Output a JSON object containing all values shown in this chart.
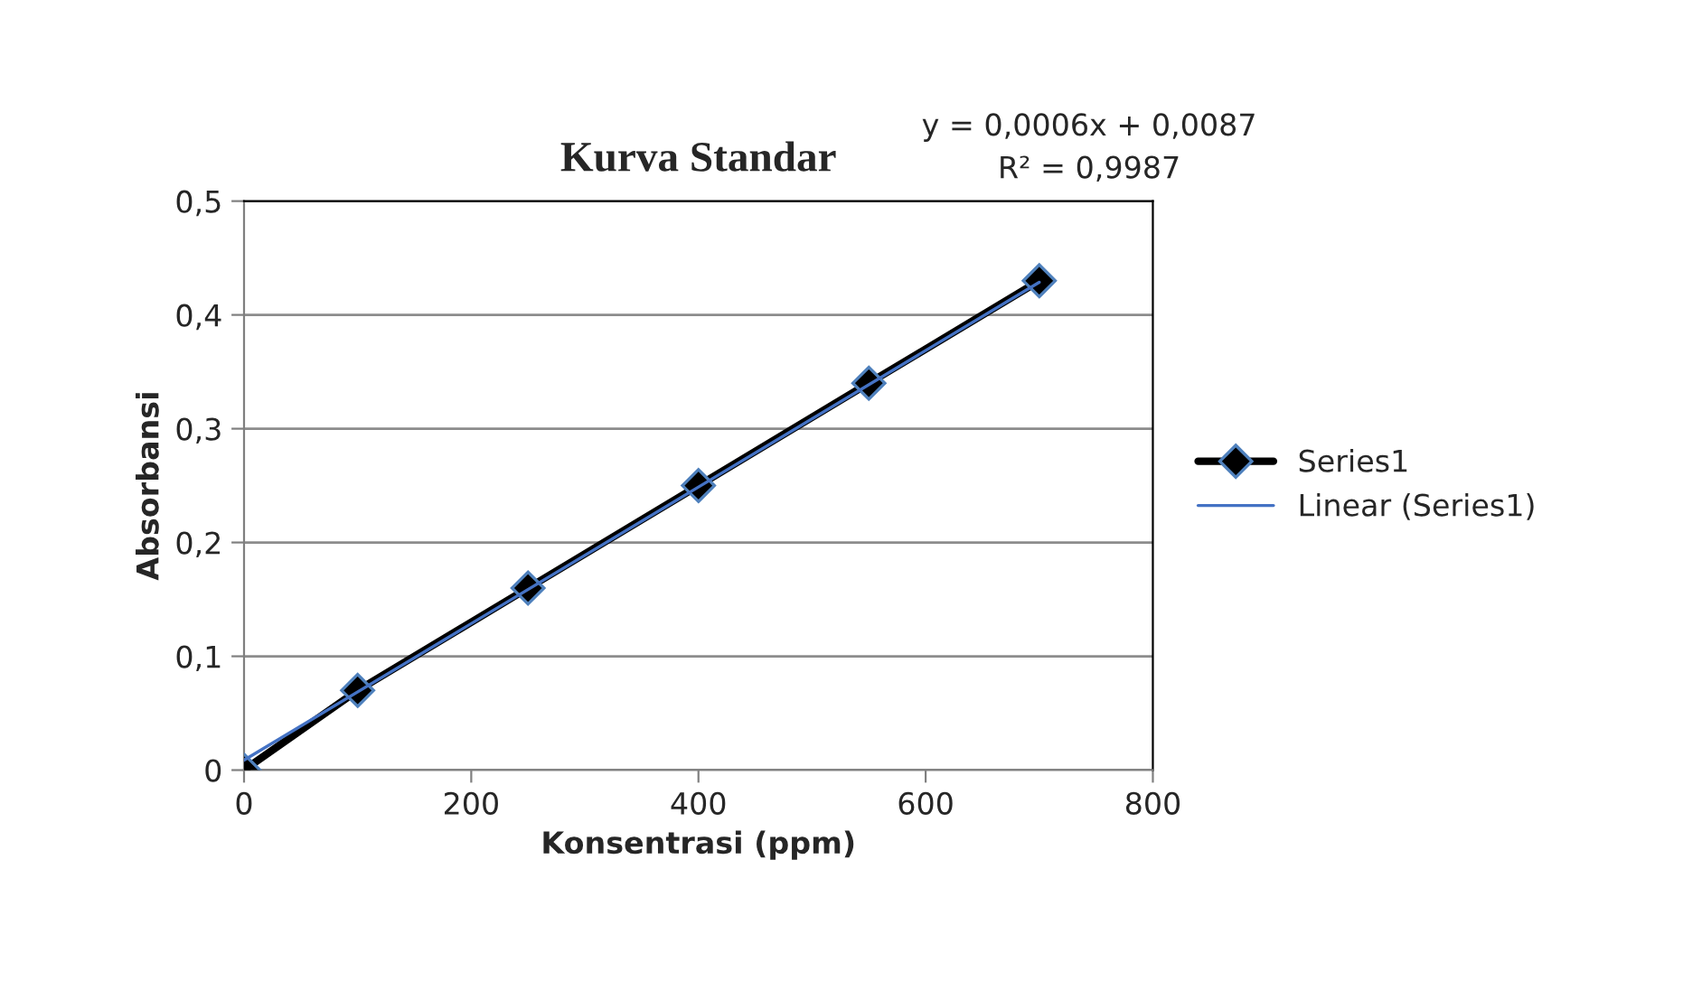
{
  "chart_data": {
    "type": "line",
    "title": "Kurva Standar",
    "xlabel": "Konsentrasi (ppm)",
    "ylabel": "Absorbansi",
    "series": [
      {
        "name": "Series1",
        "color": "#000000",
        "x": [
          0,
          100,
          250,
          400,
          550,
          700
        ],
        "values": [
          0,
          0.07,
          0.16,
          0.25,
          0.34,
          0.43
        ],
        "marker": "diamond",
        "line_style": "solid"
      },
      {
        "name": "Linear (Series1)",
        "type": "line",
        "color": "#4472c4",
        "x": [
          0,
          700
        ],
        "values": [
          0.0087,
          0.4287
        ],
        "marker": "none",
        "line_style": "solid"
      }
    ],
    "xlim": [
      0,
      800
    ],
    "xticks": [
      0,
      200,
      400,
      600,
      800
    ],
    "ylim": [
      0,
      0.5
    ],
    "yticks": [
      0,
      {
        "value": 0.1,
        "label": "0,1"
      },
      {
        "value": 0.2,
        "label": "0,2"
      },
      {
        "value": 0.3,
        "label": "0,3"
      },
      {
        "value": 0.4,
        "label": "0,4"
      },
      {
        "value": 0.5,
        "label": "0,5"
      }
    ],
    "grid": "y",
    "legend": "right",
    "annotations": [
      "y = 0,0006x + 0,0087",
      "R² = 0,9987"
    ]
  }
}
